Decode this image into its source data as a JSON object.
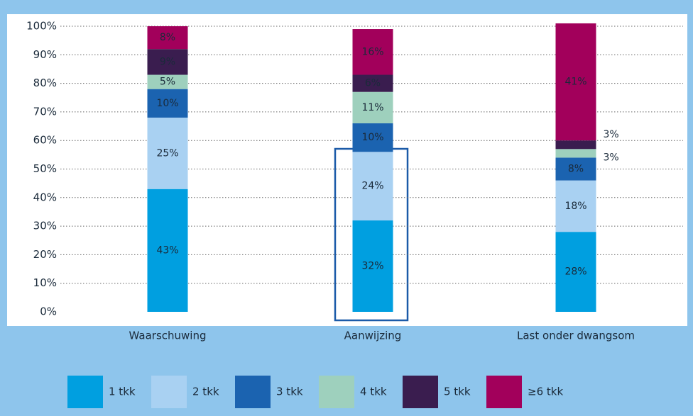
{
  "chart_data": {
    "type": "stacked-bar",
    "categories": [
      "Waarschuwing",
      "Aanwijzing",
      "Last onder dwangsom"
    ],
    "series": [
      {
        "name": "1 tkk",
        "color": "#009fe0",
        "values": [
          43,
          32,
          28
        ],
        "value_labels": [
          "43%",
          "32%",
          "28%"
        ]
      },
      {
        "name": "2 tkk",
        "color": "#a9d1f2",
        "values": [
          25,
          24,
          18
        ],
        "value_labels": [
          "25%",
          "24%",
          "18%"
        ]
      },
      {
        "name": "3 tkk",
        "color": "#1b63b0",
        "values": [
          10,
          10,
          8
        ],
        "value_labels": [
          "10%",
          "10%",
          "8%"
        ]
      },
      {
        "name": "4 tkk",
        "color": "#9ed0bd",
        "values": [
          5,
          11,
          3
        ],
        "value_labels": [
          "5%",
          "11%",
          "3%"
        ]
      },
      {
        "name": "5 tkk",
        "color": "#3a1d4f",
        "values": [
          9,
          6,
          3
        ],
        "value_labels": [
          "9%",
          "6%",
          "3%"
        ]
      },
      {
        "name": "≥6 tkk",
        "color": "#a2005b",
        "values": [
          8,
          16,
          41
        ],
        "value_labels": [
          "8%",
          "16%",
          "41%"
        ]
      }
    ],
    "ylim": [
      0,
      100
    ],
    "yticks": [
      {
        "value": 0,
        "label": "0%"
      },
      {
        "value": 10,
        "label": "10%"
      },
      {
        "value": 20,
        "label": "20%"
      },
      {
        "value": 30,
        "label": "30%"
      },
      {
        "value": 40,
        "label": "40%"
      },
      {
        "value": 50,
        "label": "50%"
      },
      {
        "value": 60,
        "label": "60%"
      },
      {
        "value": 70,
        "label": "70%"
      },
      {
        "value": 80,
        "label": "80%"
      },
      {
        "value": 90,
        "label": "90%"
      },
      {
        "value": 100,
        "label": "100%"
      }
    ],
    "grid": true
  }
}
